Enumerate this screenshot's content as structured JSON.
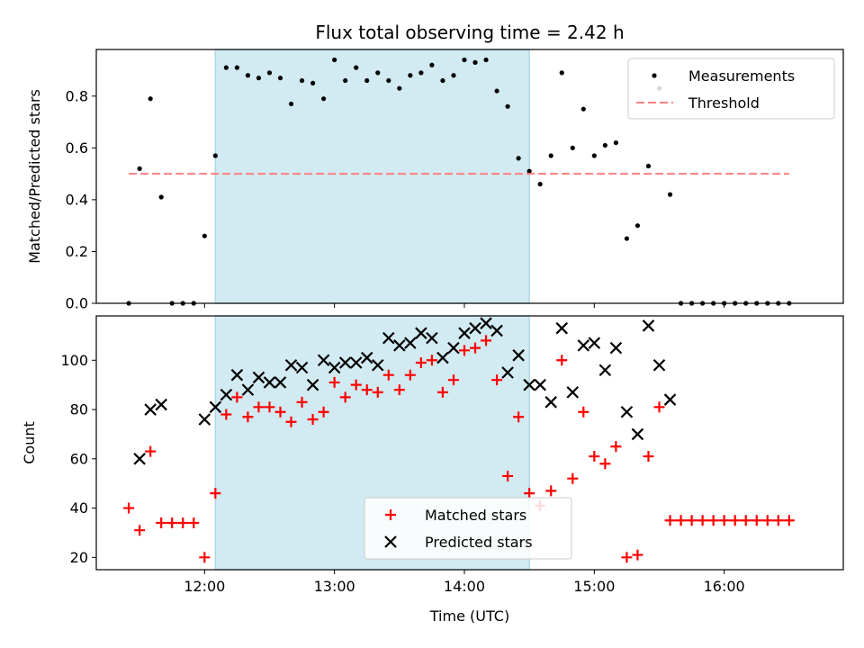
{
  "chart_data": [
    {
      "type": "scatter",
      "title": "Flux total observing time = 2.42 h",
      "xlabel": "",
      "ylabel": "Matched/Predicted stars",
      "xlim": [
        "11:10",
        "16:55"
      ],
      "ylim": [
        0,
        0.98
      ],
      "yticks": [
        "0.0",
        "0.2",
        "0.4",
        "0.6",
        "0.8"
      ],
      "shaded_span": {
        "start": "12:05",
        "end": "14:30",
        "color": "#add8e6"
      },
      "legend_position": "top-right",
      "series": [
        {
          "name": "Measurements",
          "marker": "dot",
          "color": "#000000",
          "x": [
            "11:25",
            "11:30",
            "11:35",
            "11:40",
            "11:45",
            "11:50",
            "11:55",
            "12:00",
            "12:05",
            "12:10",
            "12:15",
            "12:20",
            "12:25",
            "12:30",
            "12:35",
            "12:40",
            "12:45",
            "12:50",
            "12:55",
            "13:00",
            "13:05",
            "13:10",
            "13:15",
            "13:20",
            "13:25",
            "13:30",
            "13:35",
            "13:40",
            "13:45",
            "13:50",
            "13:55",
            "14:00",
            "14:05",
            "14:10",
            "14:15",
            "14:20",
            "14:25",
            "14:30",
            "14:35",
            "14:40",
            "14:45",
            "14:50",
            "14:55",
            "15:00",
            "15:05",
            "15:10",
            "15:15",
            "15:20",
            "15:25",
            "15:30",
            "15:35",
            "15:40",
            "15:45",
            "15:50",
            "15:55",
            "16:00",
            "16:05",
            "16:10",
            "16:15",
            "16:20",
            "16:25",
            "16:30"
          ],
          "y": [
            0.0,
            0.52,
            0.79,
            0.41,
            0.0,
            0.0,
            0.0,
            0.26,
            0.57,
            0.91,
            0.91,
            0.88,
            0.87,
            0.89,
            0.87,
            0.77,
            0.86,
            0.85,
            0.79,
            0.94,
            0.86,
            0.91,
            0.86,
            0.89,
            0.86,
            0.83,
            0.88,
            0.89,
            0.92,
            0.86,
            0.88,
            0.94,
            0.93,
            0.94,
            0.82,
            0.76,
            0.56,
            0.51,
            0.46,
            0.57,
            0.89,
            0.6,
            0.75,
            0.57,
            0.61,
            0.62,
            0.25,
            0.3,
            0.53,
            0.83,
            0.42,
            0.0,
            0.0,
            0.0,
            0.0,
            0.0,
            0.0,
            0.0,
            0.0,
            0.0,
            0.0,
            0.0
          ]
        },
        {
          "name": "Threshold",
          "marker": "dashed-line",
          "color": "#ff7f7f",
          "x": [
            "11:25",
            "16:30"
          ],
          "y": [
            0.5,
            0.5
          ]
        }
      ]
    },
    {
      "type": "scatter",
      "title": "",
      "xlabel": "Time (UTC)",
      "ylabel": "Count",
      "xlim": [
        "11:10",
        "16:55"
      ],
      "ylim": [
        15,
        118
      ],
      "yticks": [
        "20",
        "40",
        "60",
        "80",
        "100"
      ],
      "xticks": [
        "12:00",
        "13:00",
        "14:00",
        "15:00",
        "16:00"
      ],
      "shaded_span": {
        "start": "12:05",
        "end": "14:30",
        "color": "#add8e6"
      },
      "legend_position": "lower-center",
      "series": [
        {
          "name": "Matched stars",
          "marker": "plus",
          "color": "#ff0000",
          "x": [
            "11:25",
            "11:30",
            "11:35",
            "11:40",
            "11:45",
            "11:50",
            "11:55",
            "12:00",
            "12:05",
            "12:10",
            "12:15",
            "12:20",
            "12:25",
            "12:30",
            "12:35",
            "12:40",
            "12:45",
            "12:50",
            "12:55",
            "13:00",
            "13:05",
            "13:10",
            "13:15",
            "13:20",
            "13:25",
            "13:30",
            "13:35",
            "13:40",
            "13:45",
            "13:50",
            "13:55",
            "14:00",
            "14:05",
            "14:10",
            "14:15",
            "14:20",
            "14:25",
            "14:30",
            "14:35",
            "14:40",
            "14:45",
            "14:50",
            "14:55",
            "15:00",
            "15:05",
            "15:10",
            "15:15",
            "15:20",
            "15:25",
            "15:30",
            "15:35",
            "15:40",
            "15:45",
            "15:50",
            "15:55",
            "16:00",
            "16:05",
            "16:10",
            "16:15",
            "16:20",
            "16:25",
            "16:30"
          ],
          "y": [
            40,
            31,
            63,
            34,
            34,
            34,
            34,
            20,
            46,
            78,
            85,
            77,
            81,
            81,
            79,
            75,
            83,
            76,
            79,
            91,
            85,
            90,
            88,
            87,
            94,
            88,
            94,
            99,
            100,
            87,
            92,
            104,
            105,
            108,
            92,
            53,
            77,
            46,
            41,
            47,
            100,
            52,
            79,
            61,
            58,
            65,
            20,
            21,
            61,
            81,
            35,
            35,
            35,
            35,
            35,
            35,
            35,
            35,
            35,
            35,
            35,
            35
          ]
        },
        {
          "name": "Predicted stars",
          "marker": "x",
          "color": "#000000",
          "x": [
            "11:30",
            "11:35",
            "11:40",
            "12:00",
            "12:05",
            "12:10",
            "12:15",
            "12:20",
            "12:25",
            "12:30",
            "12:35",
            "12:40",
            "12:45",
            "12:50",
            "12:55",
            "13:00",
            "13:05",
            "13:10",
            "13:15",
            "13:20",
            "13:25",
            "13:30",
            "13:35",
            "13:40",
            "13:45",
            "13:50",
            "13:55",
            "14:00",
            "14:05",
            "14:10",
            "14:15",
            "14:20",
            "14:25",
            "14:30",
            "14:35",
            "14:40",
            "14:45",
            "14:50",
            "14:55",
            "15:00",
            "15:05",
            "15:10",
            "15:15",
            "15:20",
            "15:25",
            "15:30",
            "15:35"
          ],
          "y": [
            60,
            80,
            82,
            76,
            81,
            86,
            94,
            88,
            93,
            91,
            91,
            98,
            97,
            90,
            100,
            97,
            99,
            99,
            101,
            98,
            109,
            106,
            107,
            111,
            109,
            101,
            105,
            111,
            113,
            115,
            112,
            95,
            102,
            90,
            90,
            83,
            113,
            87,
            106,
            107,
            96,
            105,
            79,
            70,
            114,
            98,
            84
          ]
        }
      ]
    }
  ]
}
